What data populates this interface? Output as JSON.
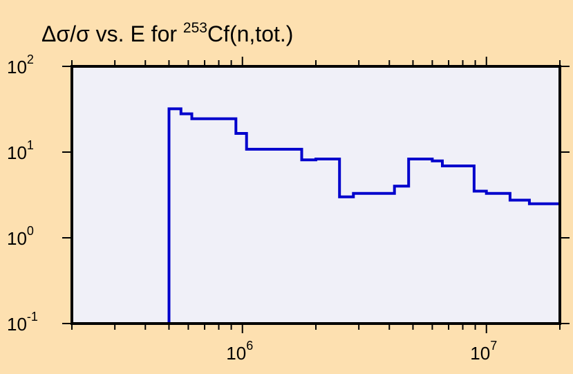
{
  "colors": {
    "background": "#fde0b0",
    "plot_area": "#f0f0f8",
    "line": "#0000cc",
    "axis": "#000000"
  },
  "chart_data": {
    "type": "line",
    "step": true,
    "title": {
      "prefix": "Δσ/σ vs. E for ",
      "superscript": "253",
      "suffix": "Cf(n,tot.)"
    },
    "xlabel": "",
    "ylabel": "",
    "x_scale": "log",
    "y_scale": "log",
    "xlim": [
      200000,
      20000000
    ],
    "ylim": [
      0.1,
      100
    ],
    "grid": false,
    "x_ticks": [
      {
        "value": 1000000,
        "base": "10",
        "exp": "6"
      },
      {
        "value": 10000000,
        "base": "10",
        "exp": "7"
      }
    ],
    "y_ticks": [
      {
        "value": 0.1,
        "base": "10",
        "exp": "-1"
      },
      {
        "value": 1,
        "base": "10",
        "exp": "0"
      },
      {
        "value": 10,
        "base": "10",
        "exp": "1"
      },
      {
        "value": 100,
        "base": "10",
        "exp": "2"
      }
    ],
    "series": [
      {
        "points": [
          {
            "x": 500000,
            "y": 0.1
          },
          {
            "x": 500000,
            "y": 32
          },
          {
            "x": 560000,
            "y": 32
          },
          {
            "x": 560000,
            "y": 28
          },
          {
            "x": 620000,
            "y": 28
          },
          {
            "x": 620000,
            "y": 24.5
          },
          {
            "x": 940000,
            "y": 24.5
          },
          {
            "x": 940000,
            "y": 16.5
          },
          {
            "x": 1040000,
            "y": 16.5
          },
          {
            "x": 1040000,
            "y": 10.8
          },
          {
            "x": 1750000,
            "y": 10.8
          },
          {
            "x": 1750000,
            "y": 8.1
          },
          {
            "x": 2000000,
            "y": 8.1
          },
          {
            "x": 2000000,
            "y": 8.3
          },
          {
            "x": 2500000,
            "y": 8.3
          },
          {
            "x": 2500000,
            "y": 3.0
          },
          {
            "x": 2850000,
            "y": 3.0
          },
          {
            "x": 2850000,
            "y": 3.3
          },
          {
            "x": 4200000,
            "y": 3.3
          },
          {
            "x": 4200000,
            "y": 4.0
          },
          {
            "x": 4800000,
            "y": 4.0
          },
          {
            "x": 4800000,
            "y": 8.3
          },
          {
            "x": 6000000,
            "y": 8.3
          },
          {
            "x": 6000000,
            "y": 7.9
          },
          {
            "x": 6600000,
            "y": 7.9
          },
          {
            "x": 6600000,
            "y": 6.9
          },
          {
            "x": 8900000,
            "y": 6.9
          },
          {
            "x": 8900000,
            "y": 3.5
          },
          {
            "x": 10000000,
            "y": 3.5
          },
          {
            "x": 10000000,
            "y": 3.3
          },
          {
            "x": 12500000,
            "y": 3.3
          },
          {
            "x": 12500000,
            "y": 2.75
          },
          {
            "x": 15000000,
            "y": 2.75
          },
          {
            "x": 15000000,
            "y": 2.5
          },
          {
            "x": 20000000,
            "y": 2.5
          },
          {
            "x": 20000000,
            "y": 0.1
          }
        ]
      }
    ]
  }
}
